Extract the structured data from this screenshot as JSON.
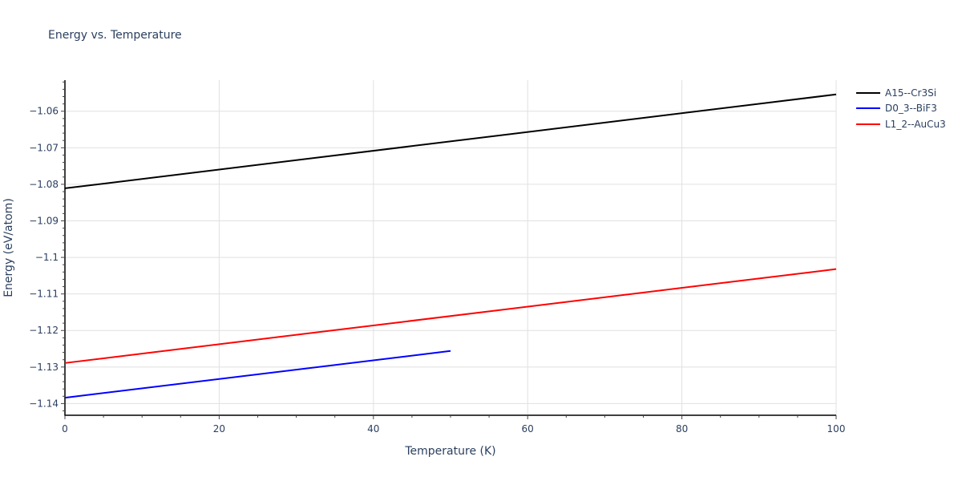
{
  "chart_data": {
    "type": "line",
    "title": "Energy vs. Temperature",
    "xlabel": "Temperature (K)",
    "ylabel": "Energy (eV/atom)",
    "xlim": [
      0,
      100
    ],
    "ylim": [
      -1.1432,
      -1.0515
    ],
    "x_ticks": [
      0,
      20,
      40,
      60,
      80,
      100
    ],
    "y_ticks": [
      -1.14,
      -1.13,
      -1.12,
      -1.11,
      -1.1,
      -1.09,
      -1.08,
      -1.07,
      -1.06
    ],
    "y_tick_labels": [
      "−1.14",
      "−1.13",
      "−1.12",
      "−1.11",
      "−1.1",
      "−1.09",
      "−1.08",
      "−1.07",
      "−1.06"
    ],
    "grid": true,
    "legend_position": "right-top",
    "series": [
      {
        "name": "A15--Cr3Si",
        "color": "#000000",
        "x": [
          0,
          100
        ],
        "y": [
          -1.0811,
          -1.0554
        ]
      },
      {
        "name": "D0_3--BiF3",
        "color": "#0000ff",
        "x": [
          0,
          50
        ],
        "y": [
          -1.1384,
          -1.1256
        ]
      },
      {
        "name": "L1_2--AuCu3",
        "color": "#ff0000",
        "x": [
          0,
          100
        ],
        "y": [
          -1.1289,
          -1.1032
        ]
      }
    ]
  }
}
